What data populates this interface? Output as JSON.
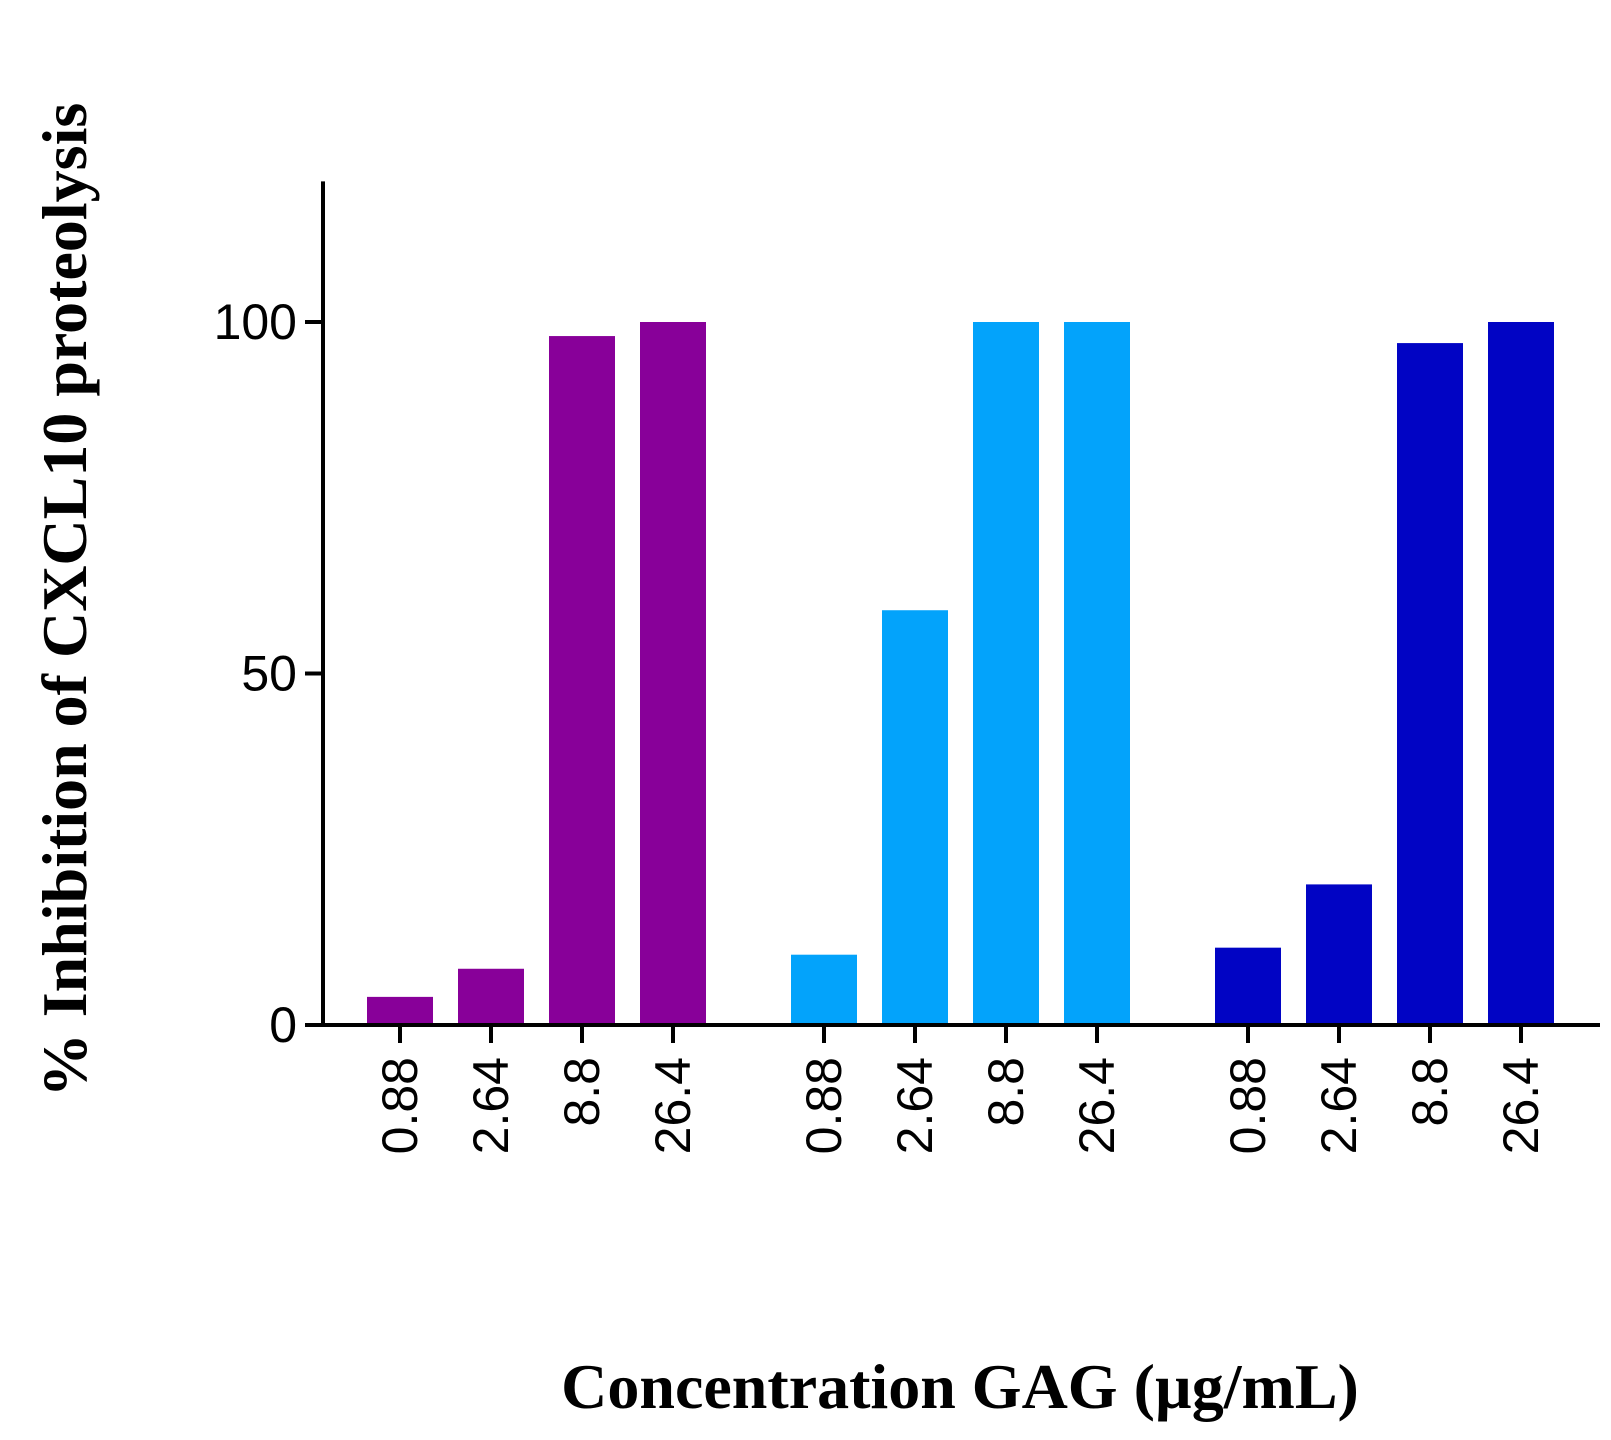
{
  "chart_data": {
    "type": "bar",
    "title": "",
    "xlabel": "Concentration GAG (µg/mL)",
    "ylabel": "% Inhibition of CXCL10 proteolysis",
    "ylim": [
      0,
      120
    ],
    "yticks": [
      0,
      50,
      100
    ],
    "grid": false,
    "legend": "none",
    "groups": [
      {
        "color": "#880099",
        "categories": [
          "0.88",
          "2.64",
          "8.8",
          "26.4"
        ],
        "values": [
          4,
          8,
          98,
          100
        ]
      },
      {
        "color": "#03a3fb",
        "categories": [
          "0.88",
          "2.64",
          "8.8",
          "26.4"
        ],
        "values": [
          10,
          59,
          100,
          100
        ]
      },
      {
        "color": "#0104c4",
        "categories": [
          "0.88",
          "2.64",
          "8.8",
          "26.4"
        ],
        "values": [
          11,
          20,
          97,
          100
        ]
      }
    ]
  }
}
